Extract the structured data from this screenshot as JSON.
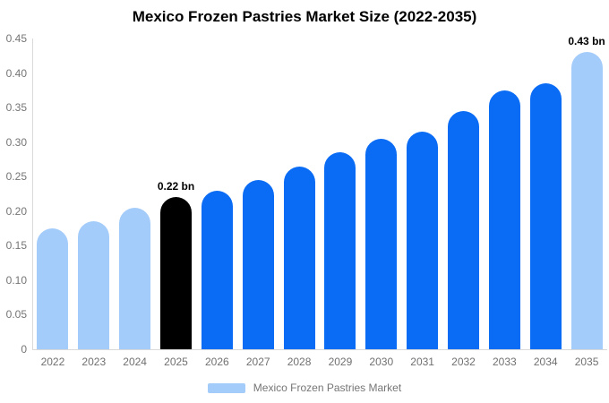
{
  "header": {
    "title": "Mexico Frozen Pastries Market Size (2022-2035)"
  },
  "legend": {
    "label": "Mexico Frozen Pastries Market",
    "swatch_color": "#a4ccfa"
  },
  "colors": {
    "light_blue": "#a4ccfa",
    "blue": "#0a6bf5",
    "black": "#000000",
    "axis_line": "#d9d9d9",
    "tick_text": "#757575"
  },
  "chart_data": {
    "type": "bar",
    "title": "Mexico Frozen Pastries Market Size (2022-2035)",
    "xlabel": "",
    "ylabel": "",
    "categories": [
      "2022",
      "2023",
      "2024",
      "2025",
      "2026",
      "2027",
      "2028",
      "2029",
      "2030",
      "2031",
      "2032",
      "2033",
      "2034",
      "2035"
    ],
    "values": [
      0.175,
      0.185,
      0.205,
      0.22,
      0.23,
      0.245,
      0.265,
      0.285,
      0.305,
      0.315,
      0.345,
      0.375,
      0.385,
      0.43
    ],
    "bar_colors": [
      "#a4ccfa",
      "#a4ccfa",
      "#a4ccfa",
      "#000000",
      "#0a6bf5",
      "#0a6bf5",
      "#0a6bf5",
      "#0a6bf5",
      "#0a6bf5",
      "#0a6bf5",
      "#0a6bf5",
      "#0a6bf5",
      "#0a6bf5",
      "#a4ccfa"
    ],
    "annotations": [
      {
        "category": "2025",
        "text": "0.22 bn"
      },
      {
        "category": "2035",
        "text": "0.43 bn"
      }
    ],
    "ylim": [
      0,
      0.45
    ],
    "yticks": [
      {
        "value": 0,
        "label": "0"
      },
      {
        "value": 0.05,
        "label": "0.05"
      },
      {
        "value": 0.1,
        "label": "0.10"
      },
      {
        "value": 0.15,
        "label": "0.15"
      },
      {
        "value": 0.2,
        "label": "0.20"
      },
      {
        "value": 0.25,
        "label": "0.25"
      },
      {
        "value": 0.3,
        "label": "0.30"
      },
      {
        "value": 0.35,
        "label": "0.35"
      },
      {
        "value": 0.4,
        "label": "0.40"
      },
      {
        "value": 0.45,
        "label": "0.45"
      }
    ],
    "grid": false,
    "legend_position": "bottom"
  }
}
